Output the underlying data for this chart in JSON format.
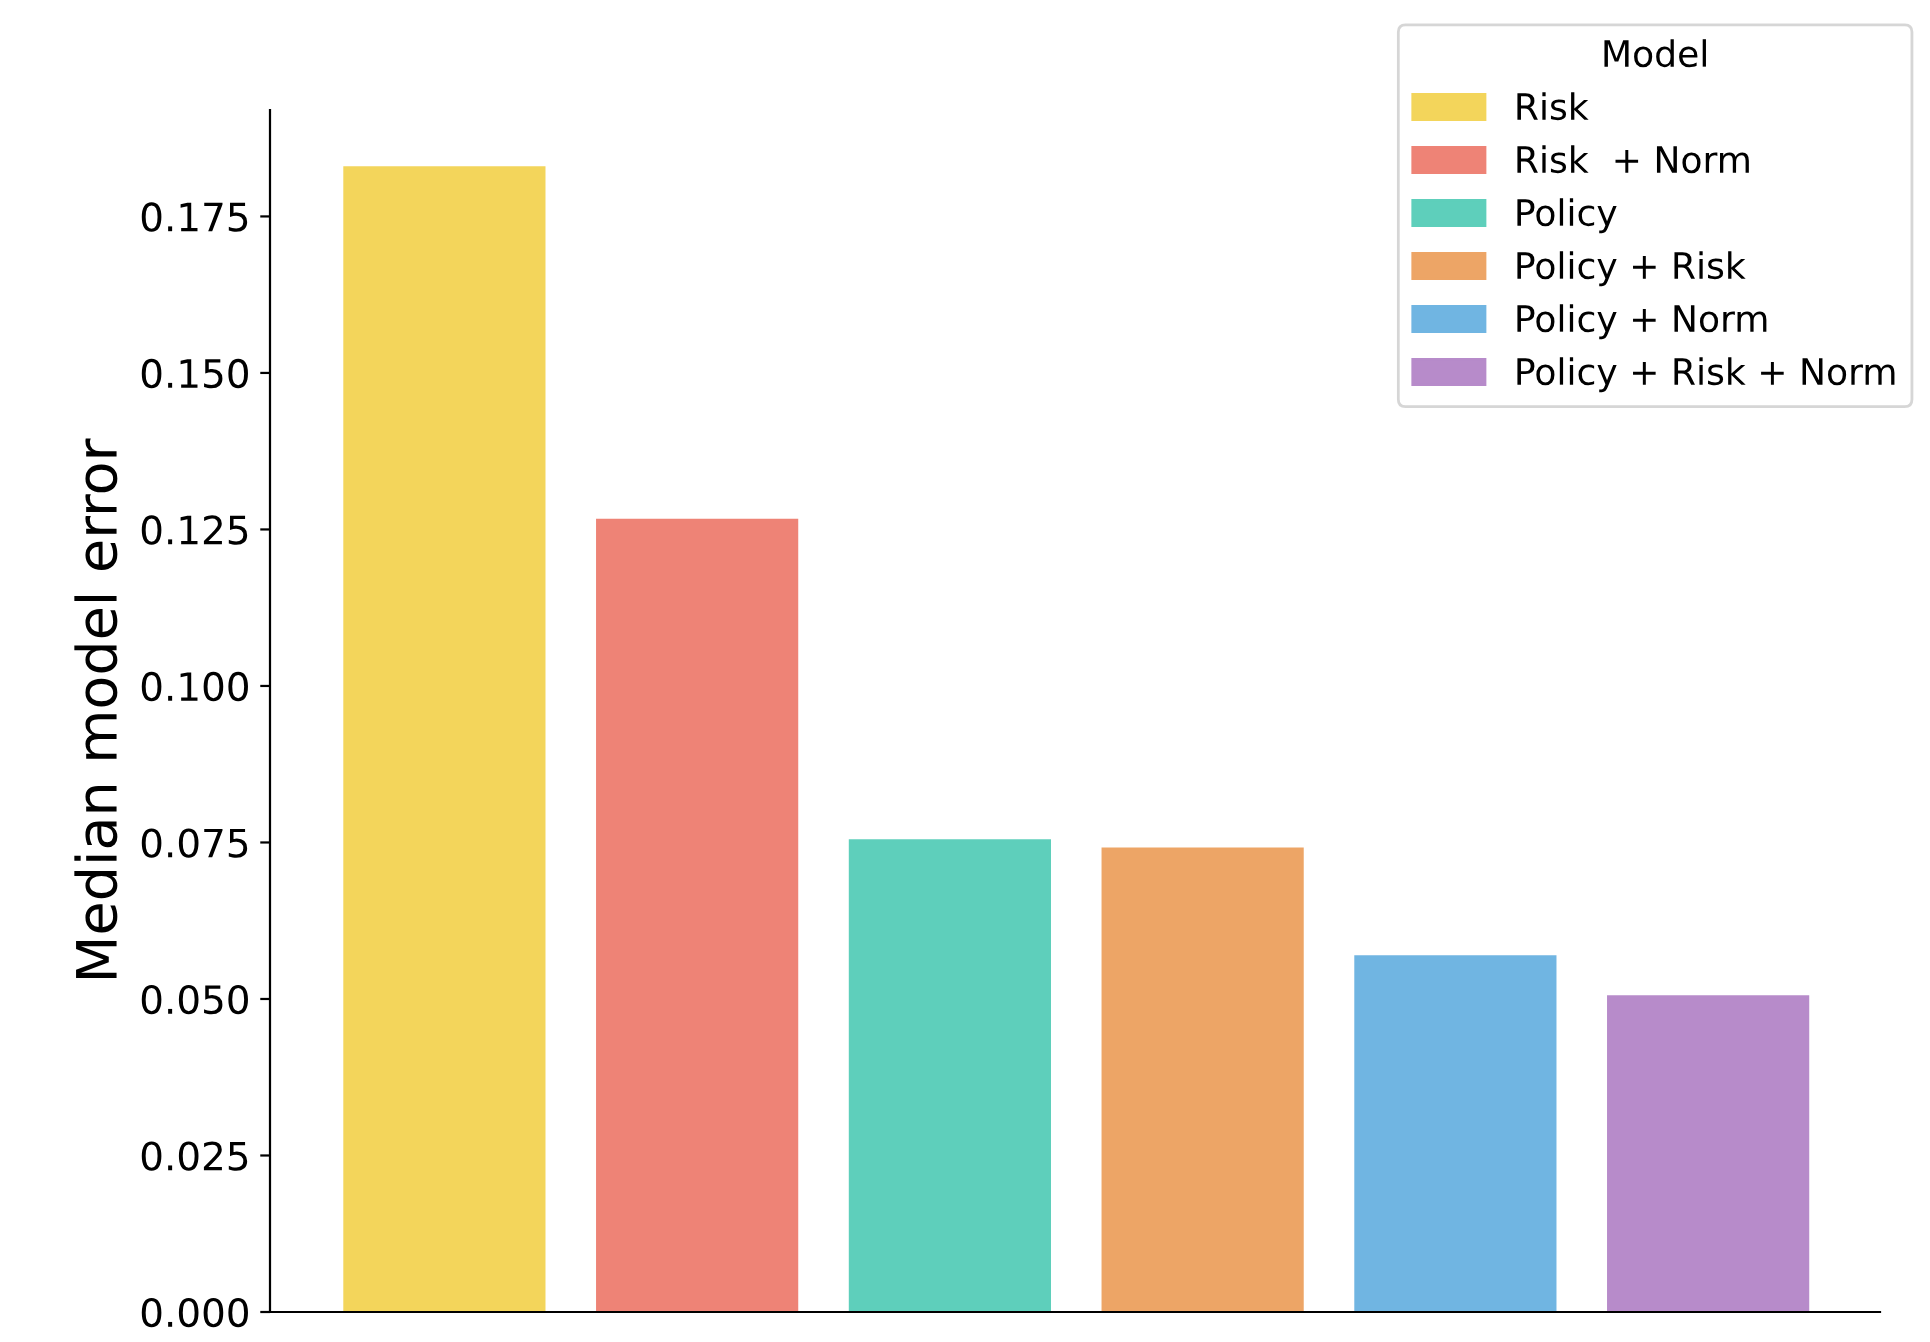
{
  "chart_data": {
    "type": "bar",
    "ylabel": "Median model error",
    "legend_title": "Model",
    "legend": "top right",
    "categories": [
      null,
      null,
      null,
      null,
      null,
      null
    ],
    "series": [
      {
        "name": "Risk",
        "color": "#f3d55b",
        "values": [
          0.183,
          null,
          null,
          null,
          null,
          null
        ]
      },
      {
        "name": "Risk  + Norm",
        "color": "#ee8376",
        "values": [
          null,
          0.1267,
          null,
          null,
          null,
          null
        ]
      },
      {
        "name": "Policy",
        "color": "#5ecfbb",
        "values": [
          null,
          null,
          0.0755,
          null,
          null,
          null
        ]
      },
      {
        "name": "Policy + Risk",
        "color": "#eda566",
        "values": [
          null,
          null,
          null,
          0.0742,
          null,
          null
        ]
      },
      {
        "name": "Policy + Norm",
        "color": "#70b5e2",
        "values": [
          null,
          null,
          null,
          null,
          0.057,
          null
        ]
      },
      {
        "name": "Policy + Risk + Norm",
        "color": "#b78bca",
        "values": [
          null,
          null,
          null,
          null,
          null,
          0.0506
        ]
      }
    ],
    "ylim": [
      0,
      0.192
    ],
    "yticks": [
      {
        "value": 0,
        "label": "0.000"
      },
      {
        "value": 0.025,
        "label": "0.025"
      },
      {
        "value": 0.05,
        "label": "0.050"
      },
      {
        "value": 0.075,
        "label": "0.075"
      },
      {
        "value": 0.1,
        "label": "0.100"
      },
      {
        "value": 0.125,
        "label": "0.125"
      },
      {
        "value": 0.15,
        "label": "0.150"
      },
      {
        "value": 0.175,
        "label": "0.175"
      }
    ],
    "grid": false
  }
}
